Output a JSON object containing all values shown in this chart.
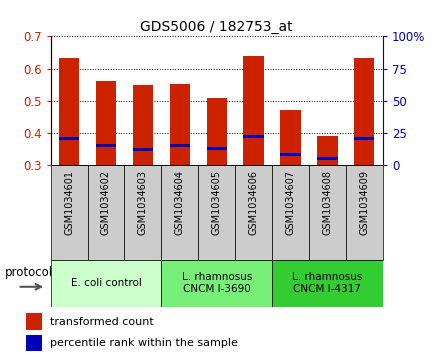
{
  "title": "GDS5006 / 182753_at",
  "samples": [
    "GSM1034601",
    "GSM1034602",
    "GSM1034603",
    "GSM1034604",
    "GSM1034605",
    "GSM1034606",
    "GSM1034607",
    "GSM1034608",
    "GSM1034609"
  ],
  "red_values": [
    0.632,
    0.56,
    0.549,
    0.551,
    0.51,
    0.638,
    0.472,
    0.392,
    0.632
  ],
  "blue_values": [
    0.383,
    0.36,
    0.348,
    0.36,
    0.352,
    0.39,
    0.332,
    0.32,
    0.382
  ],
  "ymin": 0.3,
  "ymax": 0.7,
  "yticks_left": [
    0.3,
    0.4,
    0.5,
    0.6,
    0.7
  ],
  "yticks_right": [
    0,
    25,
    50,
    75,
    100
  ],
  "yright_labels": [
    "0",
    "25",
    "50",
    "75",
    "100%"
  ],
  "bar_width": 0.55,
  "red_color": "#cc2200",
  "blue_color": "#0000bb",
  "protocol_groups": [
    {
      "label": "E. coli control",
      "start": 0,
      "end": 3,
      "color": "#ccffcc"
    },
    {
      "label": "L. rhamnosus\nCNCM I-3690",
      "start": 3,
      "end": 6,
      "color": "#77ee77"
    },
    {
      "label": "L. rhamnosus\nCNCM I-4317",
      "start": 6,
      "end": 9,
      "color": "#33cc33"
    }
  ],
  "legend_red": "transformed count",
  "legend_blue": "percentile rank within the sample",
  "protocol_label": "protocol",
  "blue_bar_height": 0.01,
  "sample_box_color": "#cccccc",
  "spine_color": "#888888"
}
